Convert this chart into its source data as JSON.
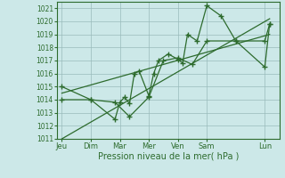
{
  "title": "",
  "xlabel": "Pression niveau de la mer( hPa )",
  "ylabel": "",
  "background_color": "#cce8e8",
  "grid_color": "#99bbbb",
  "line_color": "#2d6b2d",
  "ylim": [
    1011,
    1021.5
  ],
  "yticks": [
    1011,
    1012,
    1013,
    1014,
    1015,
    1016,
    1017,
    1018,
    1019,
    1020,
    1021
  ],
  "day_labels": [
    "Jeu",
    "Dim",
    "Mar",
    "Mer",
    "Ven",
    "Sam",
    "Lun"
  ],
  "day_positions": [
    0,
    12,
    24,
    36,
    48,
    60,
    84
  ],
  "xlim": [
    -2,
    90
  ],
  "series1_x": [
    0,
    12,
    22,
    24,
    26,
    28,
    30,
    32,
    36,
    38,
    40,
    44,
    48,
    50,
    52,
    56,
    60,
    66,
    72,
    84,
    86
  ],
  "series1_y": [
    1015.0,
    1014.0,
    1012.5,
    1013.8,
    1014.2,
    1013.7,
    1016.0,
    1016.2,
    1014.3,
    1016.0,
    1017.0,
    1017.5,
    1017.1,
    1016.8,
    1019.0,
    1018.5,
    1021.2,
    1020.4,
    1018.5,
    1016.5,
    1019.8
  ],
  "series2_x": [
    0,
    12,
    22,
    28,
    36,
    42,
    48,
    54,
    60,
    72,
    84,
    86
  ],
  "series2_y": [
    1014.0,
    1014.0,
    1013.8,
    1012.7,
    1014.2,
    1017.0,
    1017.2,
    1016.7,
    1018.5,
    1018.5,
    1018.5,
    1019.8
  ],
  "trend1_x": [
    0,
    86
  ],
  "trend1_y": [
    1014.5,
    1019.0
  ],
  "trend2_x": [
    0,
    86
  ],
  "trend2_y": [
    1011.0,
    1020.2
  ]
}
